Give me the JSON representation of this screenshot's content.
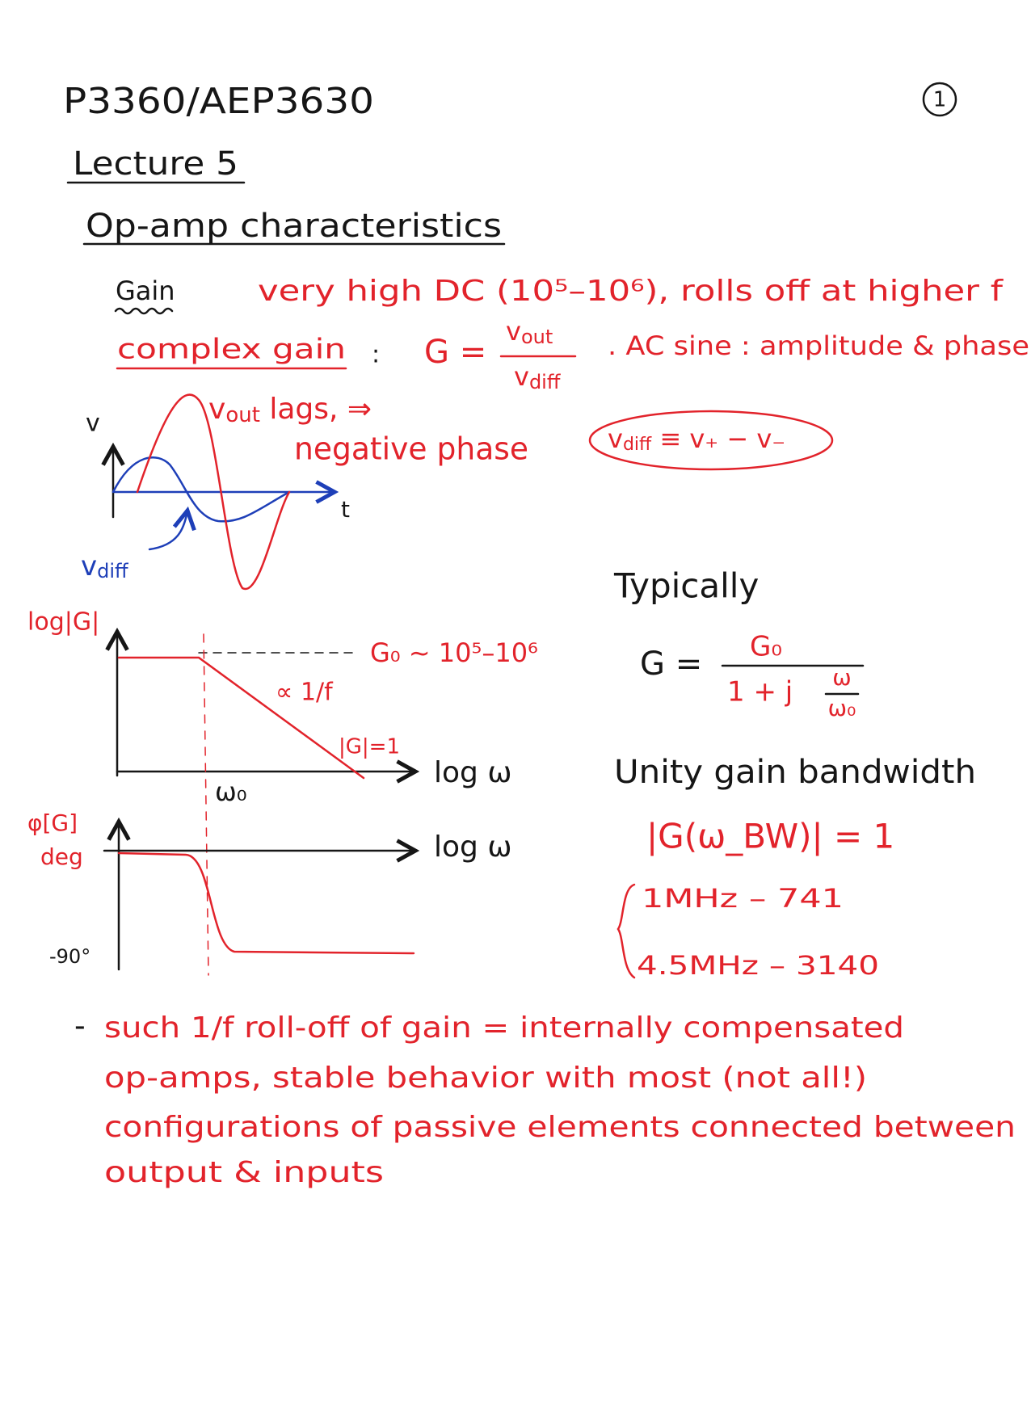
{
  "header": {
    "course": "P3360/AEP3630",
    "page": "1",
    "lecture": "Lecture 5",
    "title": "Op-amp characteristics"
  },
  "gain": {
    "label": "Gain",
    "text": "very high DC (10⁵–10⁶), rolls off at higher f"
  },
  "complex_gain": {
    "label": "complex gain",
    "colon": ":",
    "lhs": "G =",
    "numerator": {
      "symbol": "v",
      "sub": "out"
    },
    "denominator": {
      "symbol": "v",
      "sub": "diff"
    },
    "note": ". AC sine : amplitude & phase"
  },
  "sine_sketch": {
    "y_label": "v",
    "x_label": "t",
    "out_note": "v",
    "out_sub": "out",
    "out_text": " lags, ⇒",
    "phase_text": "negative phase",
    "diff_label": "v",
    "diff_sub": "diff",
    "definition": {
      "lhs": "v",
      "lhs_sub": "diff",
      "rhs": " ≡ v₊ − v₋"
    }
  },
  "magnitude_plot": {
    "y_label": "log|G|",
    "x_label": "log ω",
    "plateau": "G₀ ~ 10⁵–10⁶",
    "slope": "∝ 1/f",
    "unity": "|G|=1",
    "corner": "ω₀"
  },
  "phase_plot": {
    "y_label": "φ[G]",
    "y_unit": "deg",
    "x_label": "log ω",
    "bottom": "-90°"
  },
  "typical": {
    "heading": "Typically",
    "lhs": "G =",
    "numerator": "G₀",
    "denominator": "1 + j",
    "ratio_top": "ω",
    "ratio_bottom": "ω₀"
  },
  "bandwidth": {
    "heading": "Unity gain bandwidth",
    "equation": "|G(ω_BW)| = 1",
    "examples": [
      "1MHz – 741",
      "4.5MHz – 3140"
    ]
  },
  "notes": {
    "bullet": "-",
    "lines": [
      "such 1/f roll-off of gain = internally compensated",
      "op-amps, stable behavior with most (not all!)",
      "configurations of passive elements connected between",
      "output & inputs"
    ]
  }
}
